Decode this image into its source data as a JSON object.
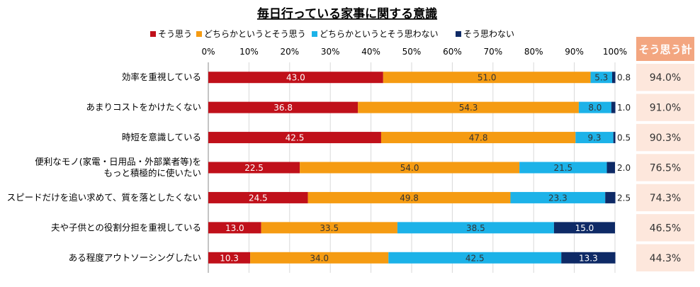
{
  "chart_data": {
    "type": "bar",
    "orientation": "horizontal",
    "stacked": true,
    "title": "毎日行っている家事に関する意識",
    "xlim": [
      0,
      100
    ],
    "x_ticks": [
      "0%",
      "10%",
      "20%",
      "30%",
      "40%",
      "50%",
      "60%",
      "70%",
      "80%",
      "90%",
      "100%"
    ],
    "legend_position": "top",
    "grid": true,
    "categories": [
      [
        "効率を重視している"
      ],
      [
        "あまりコストをかけたくない"
      ],
      [
        "時短を意識している"
      ],
      [
        "便利なモノ(家電・日用品・外部業者等)を",
        "もっと積極的に使いたい"
      ],
      [
        "スピードだけを追い求めて、質を落としたくない"
      ],
      [
        "夫や子供との役割分担を重視している"
      ],
      [
        "ある程度アウトソーシングしたい"
      ]
    ],
    "series": [
      {
        "name": "そう思う",
        "color": "#c0101a",
        "label_color": "#ffffff",
        "values": [
          43.0,
          36.8,
          42.5,
          22.5,
          24.5,
          13.0,
          10.3
        ]
      },
      {
        "name": "どちらかというとそう思う",
        "color": "#f59b12",
        "label_color": "#333333",
        "values": [
          51.0,
          54.3,
          47.8,
          54.0,
          49.8,
          33.5,
          34.0
        ]
      },
      {
        "name": "どちらかというとそう思わない",
        "color": "#1cb2e8",
        "label_color": "#333333",
        "values": [
          5.3,
          8.0,
          9.3,
          21.5,
          23.3,
          38.5,
          42.5
        ]
      },
      {
        "name": "そう思わない",
        "color": "#0e2a66",
        "label_color": "#ffffff",
        "values": [
          0.8,
          1.0,
          0.5,
          2.0,
          2.5,
          15.0,
          13.3
        ]
      }
    ],
    "data_labels": [
      [
        "43.0",
        "51.0",
        "5.3",
        "0.8"
      ],
      [
        "36.8",
        "54.3",
        "8.0",
        "1.0"
      ],
      [
        "42.5",
        "47.8",
        "9.3",
        "0.5"
      ],
      [
        "22.5",
        "54.0",
        "21.5",
        "2.0"
      ],
      [
        "24.5",
        "49.8",
        "23.3",
        "2.5"
      ],
      [
        "13.0",
        "33.5",
        "38.5",
        "15.0"
      ],
      [
        "10.3",
        "34.0",
        "42.5",
        "13.3"
      ]
    ],
    "side_column": {
      "header": "そう思う計",
      "header_color": "#f3a680",
      "cell_color": "#fde7dc",
      "values": [
        "94.0%",
        "91.0%",
        "90.3%",
        "76.5%",
        "74.3%",
        "46.5%",
        "44.3%"
      ]
    }
  }
}
